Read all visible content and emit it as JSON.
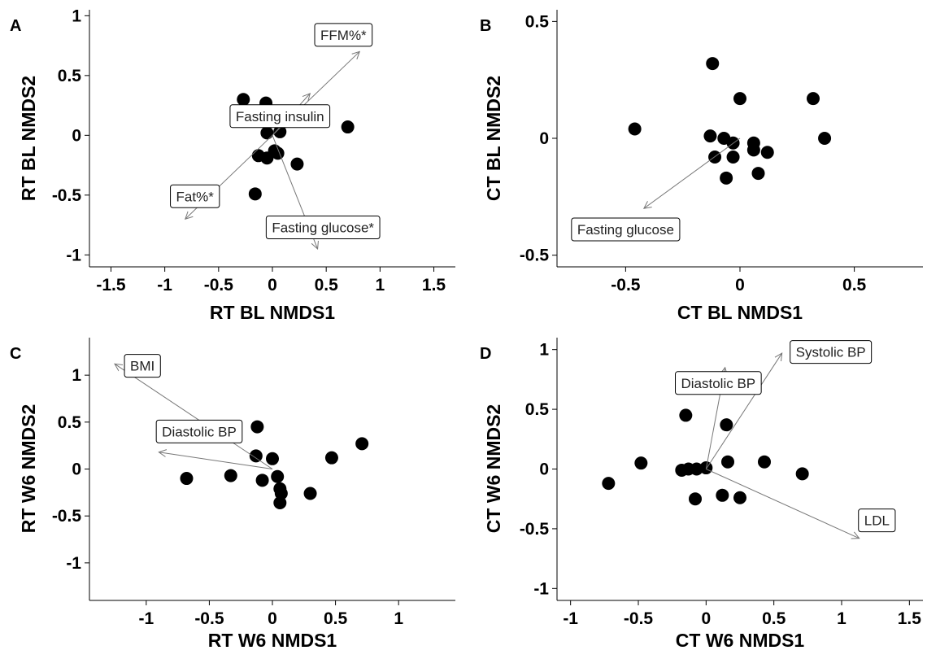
{
  "chart_data": [
    {
      "type": "scatter",
      "panel": "A",
      "xlabel": "RT BL NMDS1",
      "ylabel": "RT BL NMDS2",
      "xlim": [
        -1.7,
        1.7
      ],
      "ylim": [
        -1.1,
        1.05
      ],
      "xticks": [
        -1.5,
        -1,
        -0.5,
        0,
        0.5,
        1,
        1.5
      ],
      "xticklabels": [
        "-1.5",
        "-1",
        "-0.5",
        "0",
        "0.5",
        "1",
        "1.5"
      ],
      "yticks": [
        1,
        0.5,
        0,
        -0.5,
        -1
      ],
      "yticklabels": [
        "1",
        "0.5",
        "0",
        "-0.5",
        "-1"
      ],
      "points": [
        {
          "x": -0.27,
          "y": 0.3
        },
        {
          "x": -0.06,
          "y": 0.27
        },
        {
          "x": 0.06,
          "y": 0.19
        },
        {
          "x": 0.7,
          "y": 0.07
        },
        {
          "x": -0.05,
          "y": 0.02
        },
        {
          "x": 0.07,
          "y": 0.03
        },
        {
          "x": -0.13,
          "y": -0.17
        },
        {
          "x": -0.05,
          "y": -0.19
        },
        {
          "x": 0.02,
          "y": -0.13
        },
        {
          "x": 0.05,
          "y": -0.15
        },
        {
          "x": 0.23,
          "y": -0.24
        },
        {
          "x": -0.16,
          "y": -0.49
        }
      ],
      "vectors": [
        {
          "label": "FFM%*",
          "x": 0.81,
          "y": 0.7,
          "label_x": 0.66,
          "label_y": 0.84
        },
        {
          "label": "Fasting insulin",
          "x": 0.35,
          "y": 0.35,
          "label_x": 0.07,
          "label_y": 0.16
        },
        {
          "label": "Fat%*",
          "x": -0.81,
          "y": -0.7,
          "label_x": -0.72,
          "label_y": -0.51
        },
        {
          "label": "Fasting glucose*",
          "x": 0.42,
          "y": -0.95,
          "label_x": 0.47,
          "label_y": -0.77
        }
      ]
    },
    {
      "type": "scatter",
      "panel": "B",
      "xlabel": "CT BL NMDS1",
      "ylabel": "CT BL NMDS2",
      "xlim": [
        -0.8,
        0.8
      ],
      "ylim": [
        -0.55,
        0.55
      ],
      "xticks": [
        -0.5,
        0,
        0.5
      ],
      "xticklabels": [
        "-0.5",
        "0",
        "0.5"
      ],
      "yticks": [
        0.5,
        0,
        -0.5
      ],
      "yticklabels": [
        "0.5",
        "0",
        "-0.5"
      ],
      "points": [
        {
          "x": -0.12,
          "y": 0.32
        },
        {
          "x": -0.46,
          "y": 0.04
        },
        {
          "x": 0.0,
          "y": 0.17
        },
        {
          "x": 0.32,
          "y": 0.17
        },
        {
          "x": -0.13,
          "y": 0.01
        },
        {
          "x": -0.07,
          "y": 0.0
        },
        {
          "x": 0.37,
          "y": 0.0
        },
        {
          "x": -0.03,
          "y": -0.02
        },
        {
          "x": 0.06,
          "y": -0.02
        },
        {
          "x": -0.11,
          "y": -0.08
        },
        {
          "x": -0.03,
          "y": -0.08
        },
        {
          "x": 0.06,
          "y": -0.05
        },
        {
          "x": 0.12,
          "y": -0.06
        },
        {
          "x": 0.08,
          "y": -0.15
        },
        {
          "x": -0.06,
          "y": -0.17
        }
      ],
      "vectors": [
        {
          "label": "Fasting glucose",
          "x": -0.42,
          "y": -0.3,
          "label_x": -0.5,
          "label_y": -0.39
        }
      ]
    },
    {
      "type": "scatter",
      "panel": "C",
      "xlabel": "RT W6 NMDS1",
      "ylabel": "RT W6 NMDS2",
      "xlim": [
        -1.45,
        1.45
      ],
      "ylim": [
        -1.4,
        1.4
      ],
      "xticks": [
        -1,
        -0.5,
        0,
        0.5,
        1
      ],
      "xticklabels": [
        "-1",
        "-0.5",
        "0",
        "0.5",
        "1"
      ],
      "yticks": [
        1,
        0.5,
        0,
        -0.5,
        -1
      ],
      "yticklabels": [
        "1",
        "0.5",
        "0",
        "-0.5",
        "-1"
      ],
      "points": [
        {
          "x": -0.12,
          "y": 0.45
        },
        {
          "x": 0.71,
          "y": 0.27
        },
        {
          "x": -0.13,
          "y": 0.14
        },
        {
          "x": 0.0,
          "y": 0.11
        },
        {
          "x": 0.47,
          "y": 0.12
        },
        {
          "x": -0.68,
          "y": -0.1
        },
        {
          "x": -0.33,
          "y": -0.07
        },
        {
          "x": 0.04,
          "y": -0.08
        },
        {
          "x": -0.08,
          "y": -0.12
        },
        {
          "x": 0.06,
          "y": -0.21
        },
        {
          "x": 0.07,
          "y": -0.26
        },
        {
          "x": 0.3,
          "y": -0.26
        },
        {
          "x": 0.06,
          "y": -0.36
        }
      ],
      "vectors": [
        {
          "label": "BMI",
          "x": -1.25,
          "y": 1.12,
          "label_x": -1.03,
          "label_y": 1.1
        },
        {
          "label": "Diastolic BP",
          "x": -0.9,
          "y": 0.18,
          "label_x": -0.58,
          "label_y": 0.4
        }
      ]
    },
    {
      "type": "scatter",
      "panel": "D",
      "xlabel": "CT W6 NMDS1",
      "ylabel": "CT W6 NMDS2",
      "xlim": [
        -1.1,
        1.6
      ],
      "ylim": [
        -1.1,
        1.1
      ],
      "xticks": [
        -1,
        -0.5,
        0,
        0.5,
        1,
        1.5
      ],
      "xticklabels": [
        "-1",
        "-0.5",
        "0",
        "0.5",
        "1",
        "1.5"
      ],
      "yticks": [
        1,
        0.5,
        0,
        -0.5,
        -1
      ],
      "yticklabels": [
        "1",
        "0.5",
        "0",
        "-0.5",
        "-1"
      ],
      "points": [
        {
          "x": -0.15,
          "y": 0.45
        },
        {
          "x": 0.15,
          "y": 0.37
        },
        {
          "x": -0.48,
          "y": 0.05
        },
        {
          "x": 0.16,
          "y": 0.06
        },
        {
          "x": 0.43,
          "y": 0.06
        },
        {
          "x": -0.18,
          "y": -0.01
        },
        {
          "x": -0.13,
          "y": 0.0
        },
        {
          "x": -0.07,
          "y": 0.0
        },
        {
          "x": 0.0,
          "y": 0.01
        },
        {
          "x": 0.71,
          "y": -0.04
        },
        {
          "x": -0.72,
          "y": -0.12
        },
        {
          "x": 0.12,
          "y": -0.22
        },
        {
          "x": -0.08,
          "y": -0.25
        },
        {
          "x": 0.25,
          "y": -0.24
        }
      ],
      "vectors": [
        {
          "label": "Diastolic BP",
          "x": 0.14,
          "y": 0.85,
          "label_x": 0.09,
          "label_y": 0.72
        },
        {
          "label": "Systolic BP",
          "x": 0.56,
          "y": 0.97,
          "label_x": 0.92,
          "label_y": 0.98
        },
        {
          "label": "LDL",
          "x": 1.13,
          "y": -0.58,
          "label_x": 1.26,
          "label_y": -0.43
        }
      ]
    }
  ]
}
